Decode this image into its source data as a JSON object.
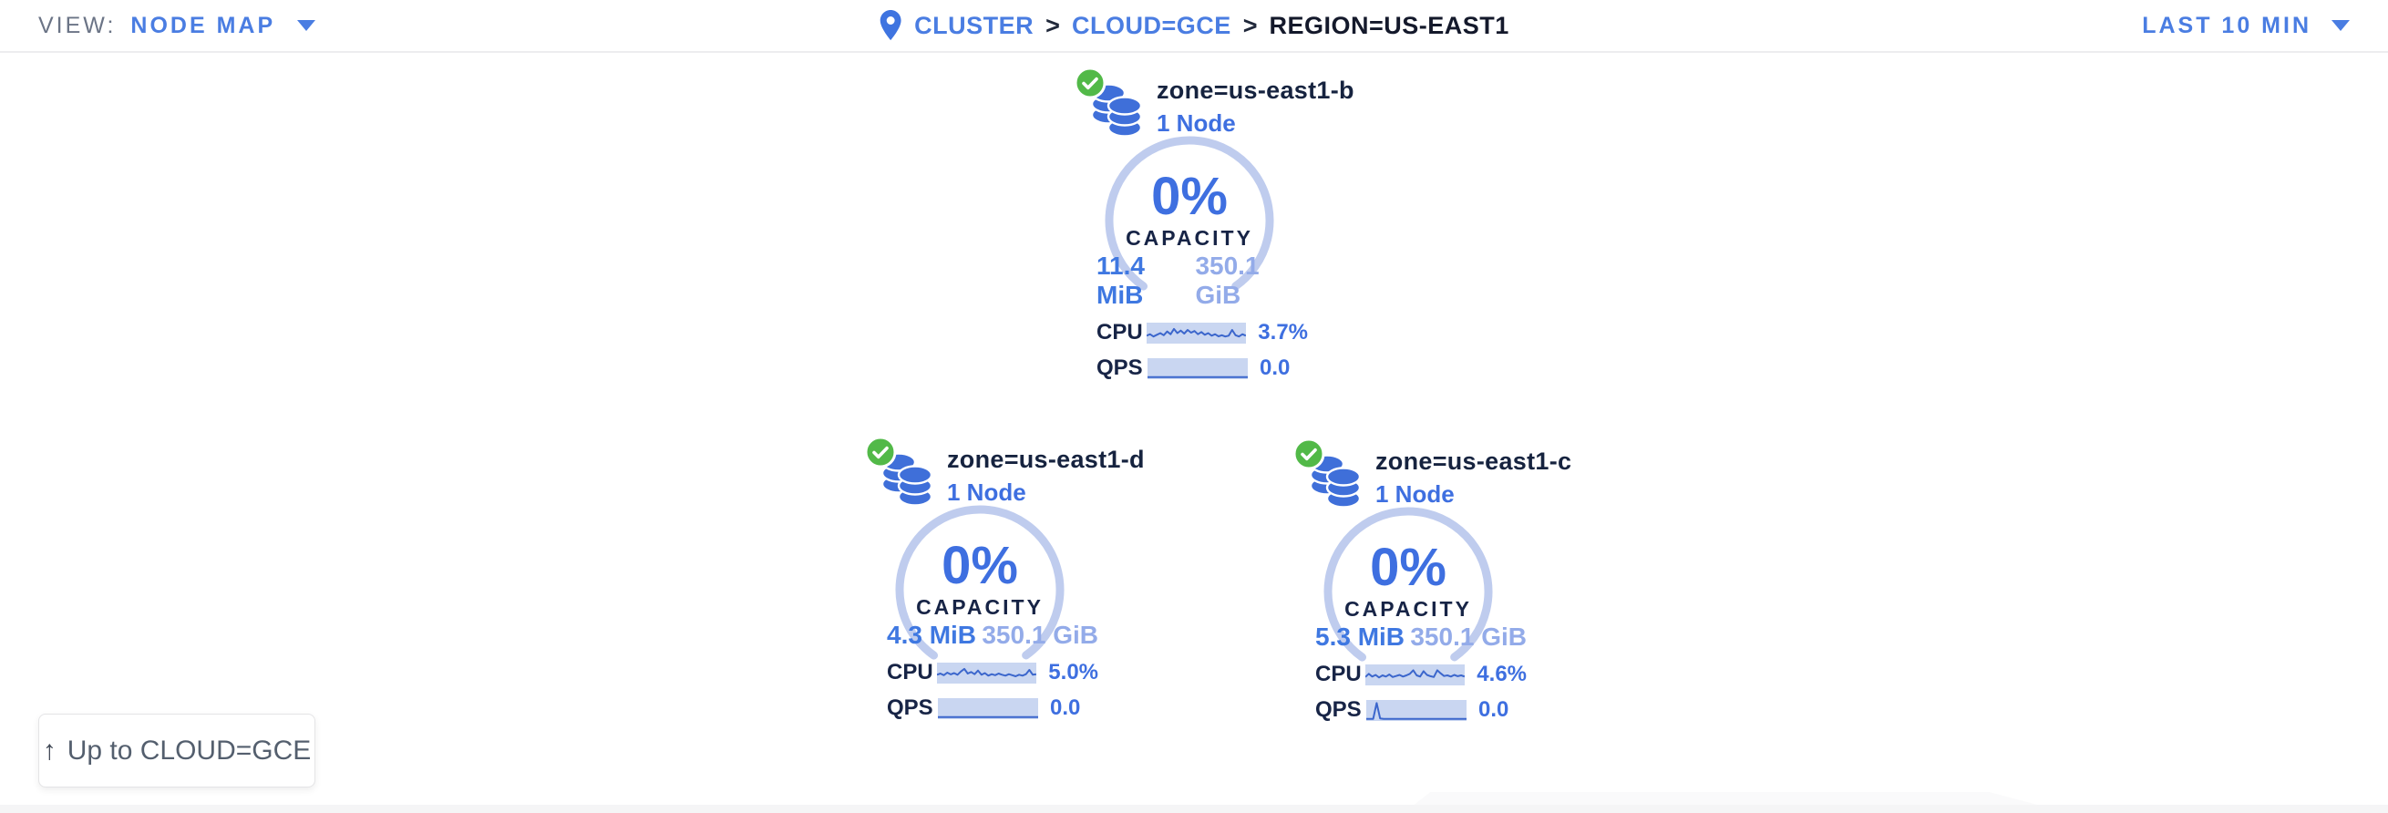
{
  "colors": {
    "link_blue": "#4a7de2",
    "value_blue": "#3e6fe0",
    "pale_blue": "#93abe9",
    "arc_blue": "#bfccee",
    "spark_bg": "#c9d6f1",
    "spark_line": "#3b66cc",
    "status_green": "#52b948",
    "db_icon_blue": "#3f6fd9",
    "gray_text": "#6b7486"
  },
  "header": {
    "view_label": "VIEW:",
    "view_value": "NODE MAP",
    "breadcrumb_separator": ">",
    "breadcrumb": [
      {
        "label": "CLUSTER"
      },
      {
        "label": "CLOUD=GCE"
      },
      {
        "label": "REGION=US-EAST1"
      }
    ],
    "time_range": "LAST 10 MIN"
  },
  "zones": [
    {
      "name": "zone=us-east1-b",
      "node_count": "1 Node",
      "status": "healthy",
      "capacity_percent": "0%",
      "capacity_label": "CAPACITY",
      "used": "11.4 MiB",
      "total": "350.1 GiB",
      "cpu_label": "CPU",
      "cpu_value": "3.7%",
      "qps_label": "QPS",
      "qps_value": "0.0",
      "cpu_spark": [
        0.62,
        0.55,
        0.66,
        0.58,
        0.5,
        0.6,
        0.42,
        0.55,
        0.3,
        0.5,
        0.38,
        0.52,
        0.35,
        0.48,
        0.4,
        0.55,
        0.45,
        0.58,
        0.5,
        0.62,
        0.55,
        0.65,
        0.6,
        0.66,
        0.62,
        0.35,
        0.6,
        0.66,
        0.55,
        0.62
      ],
      "qps_spark": [
        0.9,
        0.9,
        0.9,
        0.9,
        0.9,
        0.9,
        0.9,
        0.9,
        0.9,
        0.9,
        0.9,
        0.9,
        0.9,
        0.9,
        0.9,
        0.9,
        0.9,
        0.9,
        0.9,
        0.9,
        0.9,
        0.9,
        0.9,
        0.9,
        0.9,
        0.9,
        0.9,
        0.9,
        0.9,
        0.9
      ]
    },
    {
      "name": "zone=us-east1-d",
      "node_count": "1 Node",
      "status": "healthy",
      "capacity_percent": "0%",
      "capacity_label": "CAPACITY",
      "used": "4.3 MiB",
      "total": "350.1 GiB",
      "cpu_label": "CPU",
      "cpu_value": "5.0%",
      "qps_label": "QPS",
      "qps_value": "0.0",
      "cpu_spark": [
        0.58,
        0.52,
        0.6,
        0.48,
        0.56,
        0.5,
        0.58,
        0.42,
        0.3,
        0.52,
        0.45,
        0.55,
        0.38,
        0.58,
        0.5,
        0.62,
        0.55,
        0.6,
        0.52,
        0.58,
        0.62,
        0.55,
        0.6,
        0.65,
        0.58,
        0.62,
        0.55,
        0.35,
        0.58,
        0.55
      ],
      "qps_spark": [
        0.9,
        0.9,
        0.9,
        0.9,
        0.9,
        0.9,
        0.9,
        0.9,
        0.9,
        0.9,
        0.9,
        0.9,
        0.9,
        0.9,
        0.9,
        0.9,
        0.9,
        0.9,
        0.9,
        0.9,
        0.9,
        0.9,
        0.9,
        0.9,
        0.9,
        0.9,
        0.9,
        0.9,
        0.9,
        0.9
      ]
    },
    {
      "name": "zone=us-east1-c",
      "node_count": "1 Node",
      "status": "healthy",
      "capacity_percent": "0%",
      "capacity_label": "CAPACITY",
      "used": "5.3 MiB",
      "total": "350.1 GiB",
      "cpu_label": "CPU",
      "cpu_value": "4.6%",
      "qps_label": "QPS",
      "qps_value": "0.0",
      "cpu_spark": [
        0.6,
        0.45,
        0.58,
        0.5,
        0.62,
        0.52,
        0.58,
        0.48,
        0.6,
        0.55,
        0.5,
        0.58,
        0.52,
        0.45,
        0.28,
        0.52,
        0.58,
        0.32,
        0.5,
        0.56,
        0.6,
        0.28,
        0.42,
        0.55,
        0.52,
        0.58,
        0.5,
        0.56,
        0.52,
        0.58
      ],
      "qps_spark": [
        0.9,
        0.9,
        0.9,
        0.15,
        0.88,
        0.9,
        0.9,
        0.9,
        0.9,
        0.9,
        0.9,
        0.9,
        0.9,
        0.9,
        0.9,
        0.9,
        0.9,
        0.9,
        0.9,
        0.9,
        0.9,
        0.9,
        0.9,
        0.9,
        0.9,
        0.9,
        0.9,
        0.9,
        0.9,
        0.9
      ]
    }
  ],
  "up_button": {
    "icon": "↑",
    "label": "Up to CLOUD=GCE"
  }
}
